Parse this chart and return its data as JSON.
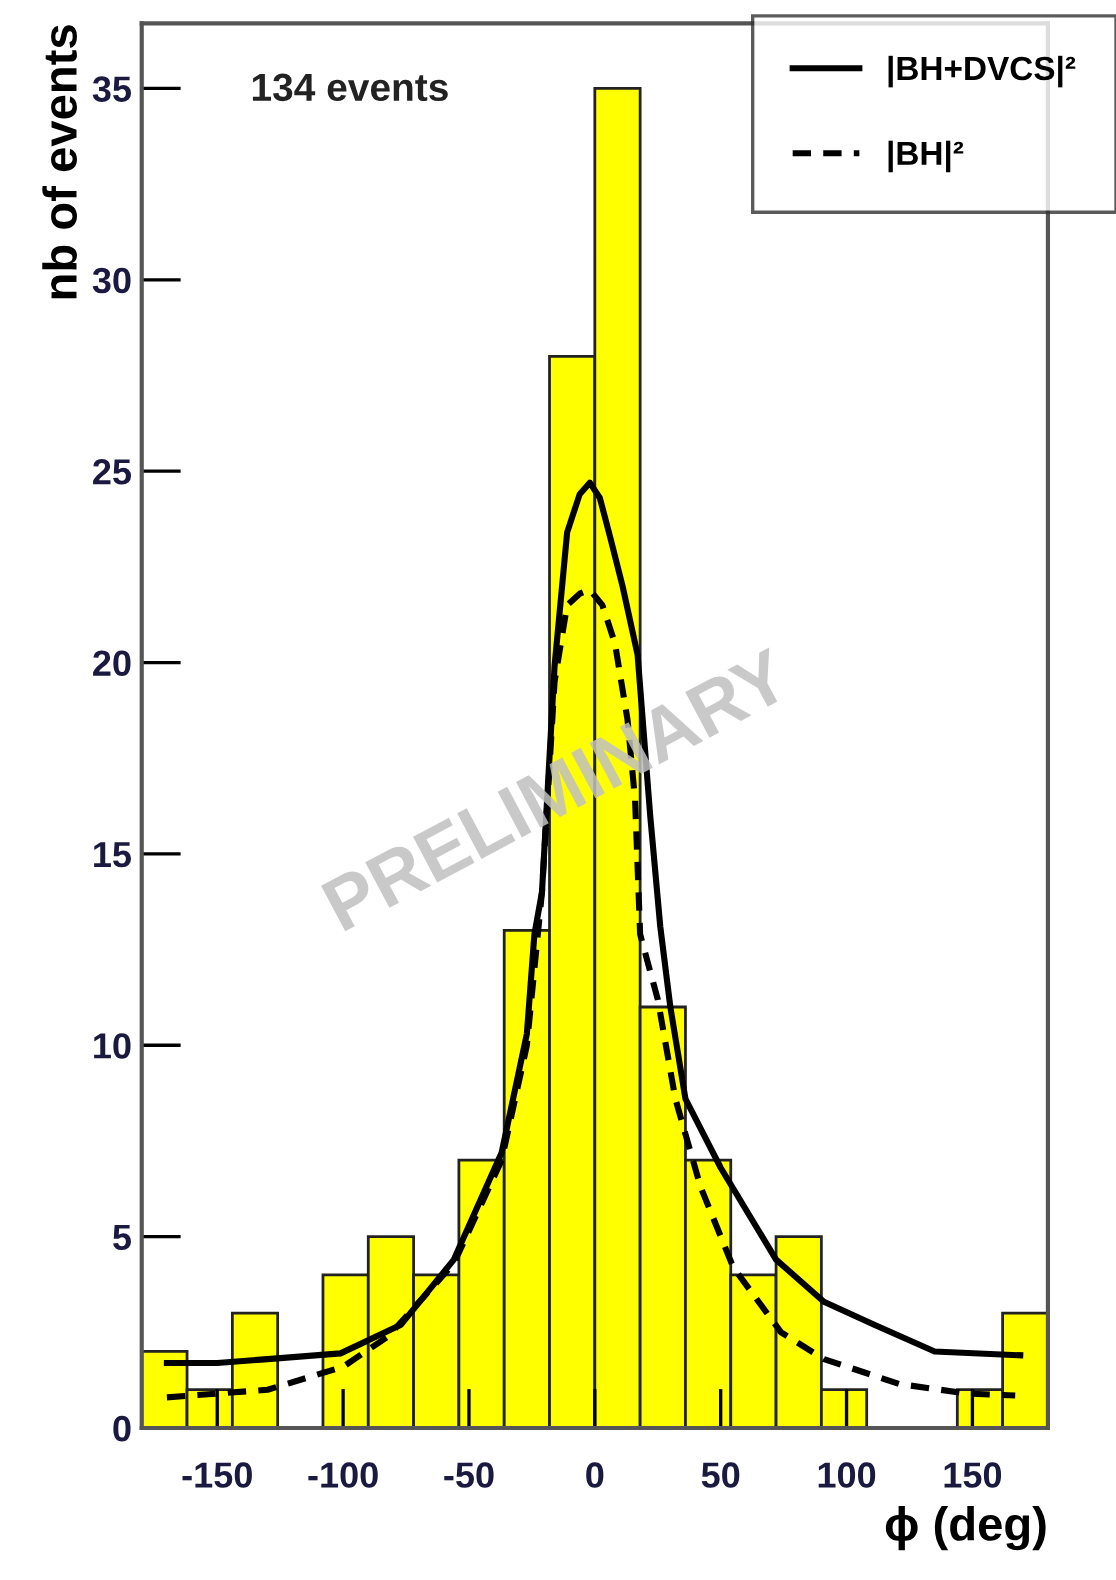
{
  "chart_data": {
    "type": "histogram",
    "xlabel": "ϕ (deg)",
    "ylabel": "nb of events",
    "bins": [
      -180,
      -162,
      -144,
      -126,
      -108,
      -90,
      -72,
      -54,
      -36,
      -18,
      0,
      18,
      36,
      54,
      72,
      90,
      108,
      126,
      144,
      162,
      180
    ],
    "values": [
      2,
      1,
      3,
      0,
      4,
      5,
      4,
      7,
      13,
      28,
      35,
      11,
      7,
      4,
      5,
      1,
      0,
      0,
      1,
      3
    ],
    "color": "#ffff00",
    "series": [
      {
        "name": "|BH+DVCS|²",
        "type": "line",
        "color": "#000000",
        "line_style": "solid",
        "x": [
          -170,
          -150,
          -130,
          -101,
          -77,
          -56,
          -37,
          -27,
          -24,
          -21,
          -16,
          -11,
          -6,
          -2,
          2,
          6,
          11,
          17,
          22,
          26,
          30,
          36,
          50,
          72,
          91,
          111,
          135,
          169
        ],
        "values": [
          1.7,
          1.7,
          1.8,
          1.95,
          2.7,
          4.4,
          7.2,
          10.3,
          12.9,
          14,
          19.9,
          23.4,
          24.4,
          24.7,
          24.3,
          23.3,
          22,
          20.2,
          16,
          13.1,
          11,
          8.6,
          6.8,
          4.4,
          3.3,
          2.7,
          2.0,
          1.9
        ]
      },
      {
        "name": "|BH|²",
        "type": "line",
        "color": "#000000",
        "line_style": "dashed",
        "x": [
          -170,
          -150,
          -130,
          -110,
          -100,
          -82,
          -56,
          -37,
          -27,
          -21,
          -16,
          -11,
          -6,
          -2,
          3,
          8,
          13,
          16,
          18,
          25,
          32,
          42,
          55,
          74,
          91,
          121,
          148,
          167
        ],
        "values": [
          0.8,
          0.9,
          1.0,
          1.4,
          1.6,
          2.4,
          4.3,
          7,
          10,
          14,
          19.5,
          21.5,
          21.8,
          21.9,
          21.5,
          20.5,
          18.5,
          16.4,
          12.9,
          11.2,
          8.6,
          6.3,
          4.2,
          2.5,
          1.8,
          1.15,
          0.9,
          0.85
        ]
      }
    ],
    "xlim": [
      -180,
      180
    ],
    "xticks": [
      -150,
      -100,
      -50,
      0,
      50,
      100,
      150
    ],
    "ylim": [
      0,
      36.7
    ],
    "yticks": [
      0,
      5,
      10,
      15,
      20,
      25,
      30,
      35
    ],
    "annotations": [
      "134 events",
      "PRELIMINARY"
    ],
    "legend": "top right",
    "grid": false
  }
}
